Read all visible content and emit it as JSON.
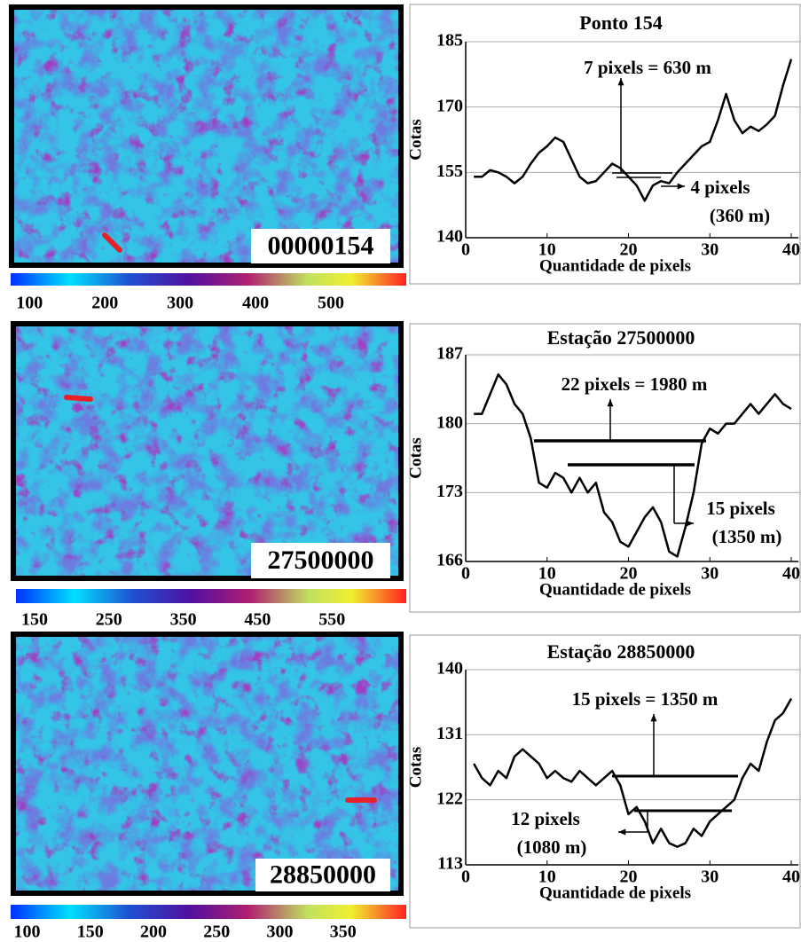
{
  "chart_data": [
    {
      "type": "raster",
      "label": "00000154",
      "xlim": [
        75,
        600
      ],
      "xticks": [
        100,
        200,
        300,
        400,
        500
      ]
    },
    {
      "type": "line",
      "title": "Ponto 154",
      "xlabel": "Quantidade de pixels",
      "ylabel": "Cotas",
      "color": "#000000",
      "x": [
        1,
        2,
        3,
        4,
        5,
        6,
        7,
        8,
        9,
        10,
        11,
        12,
        13,
        14,
        15,
        16,
        17,
        18,
        19,
        20,
        21,
        22,
        23,
        24,
        25,
        26,
        27,
        28,
        29,
        30,
        31,
        32,
        33,
        34,
        35,
        36,
        37,
        38,
        39,
        40
      ],
      "values": [
        154,
        154,
        155.5,
        155,
        154,
        152.5,
        154,
        157,
        159.5,
        161,
        163,
        162,
        158,
        154,
        152.5,
        153,
        155,
        157,
        156,
        154,
        152,
        148.5,
        152,
        153,
        152.5,
        155,
        157,
        159,
        161,
        162,
        167,
        173,
        167,
        164,
        165.5,
        164.5,
        166,
        168,
        175,
        181
      ],
      "xlim": [
        0,
        40
      ],
      "xticks": [
        0,
        10,
        20,
        30,
        40
      ],
      "ylim": [
        140,
        185
      ],
      "yticks": [
        140,
        155,
        170,
        185
      ],
      "grid": true,
      "annotations": [
        "7 pixels = 630 m",
        "4 pixels",
        "(360 m)"
      ]
    },
    {
      "type": "raster",
      "label": "27500000",
      "xlim": [
        125,
        650
      ],
      "xticks": [
        150,
        250,
        350,
        450,
        550
      ]
    },
    {
      "type": "line",
      "title": "Estação 27500000",
      "xlabel": "Quantidade de pixels",
      "ylabel": "Cotas",
      "color": "#000000",
      "x": [
        1,
        2,
        3,
        4,
        5,
        6,
        7,
        8,
        9,
        10,
        11,
        12,
        13,
        14,
        15,
        16,
        17,
        18,
        19,
        20,
        21,
        22,
        23,
        24,
        25,
        26,
        27,
        28,
        29,
        30,
        31,
        32,
        33,
        34,
        35,
        36,
        37,
        38,
        39,
        40
      ],
      "values": [
        181,
        181,
        183,
        185,
        184,
        182,
        181,
        178.5,
        174,
        173.5,
        175,
        174.5,
        173,
        174.5,
        173,
        174,
        171,
        170,
        168,
        167.5,
        169,
        170.5,
        171.5,
        170,
        167,
        166.5,
        169.5,
        173,
        178,
        179.5,
        179,
        180,
        180,
        181,
        182,
        181,
        182,
        183,
        182,
        181.5
      ],
      "xlim": [
        0,
        40
      ],
      "xticks": [
        0,
        10,
        20,
        30,
        40
      ],
      "ylim": [
        166,
        187
      ],
      "yticks": [
        166,
        173,
        180,
        187
      ],
      "grid": true,
      "annotations": [
        "22 pixels = 1980 m",
        "15 pixels",
        "(1350 m)"
      ]
    },
    {
      "type": "raster",
      "label": "28850000",
      "xlim": [
        87,
        400
      ],
      "xticks": [
        100,
        150,
        200,
        250,
        300,
        350
      ]
    },
    {
      "type": "line",
      "title": "Estação 28850000",
      "xlabel": "Quantidade de pixels",
      "ylabel": "Cotas",
      "color": "#000000",
      "x": [
        1,
        2,
        3,
        4,
        5,
        6,
        7,
        8,
        9,
        10,
        11,
        12,
        13,
        14,
        15,
        16,
        17,
        18,
        19,
        20,
        21,
        22,
        23,
        24,
        25,
        26,
        27,
        28,
        29,
        30,
        31,
        32,
        33,
        34,
        35,
        36,
        37,
        38,
        39,
        40
      ],
      "values": [
        127,
        125,
        124,
        126,
        125,
        128,
        129,
        128,
        127,
        125,
        126,
        125,
        124.5,
        126,
        125,
        124,
        125,
        126,
        124,
        120,
        121,
        119,
        116,
        118,
        116,
        115.5,
        116,
        118,
        117,
        119,
        120,
        121,
        122,
        125,
        127,
        126,
        130,
        133,
        134,
        136
      ],
      "xlim": [
        0,
        40
      ],
      "xticks": [
        0,
        10,
        20,
        30,
        40
      ],
      "ylim": [
        113,
        140
      ],
      "yticks": [
        113,
        122,
        131,
        140
      ],
      "grid": true,
      "annotations": [
        "15 pixels = 1350 m",
        "12 pixels",
        "(1080 m)"
      ]
    }
  ]
}
